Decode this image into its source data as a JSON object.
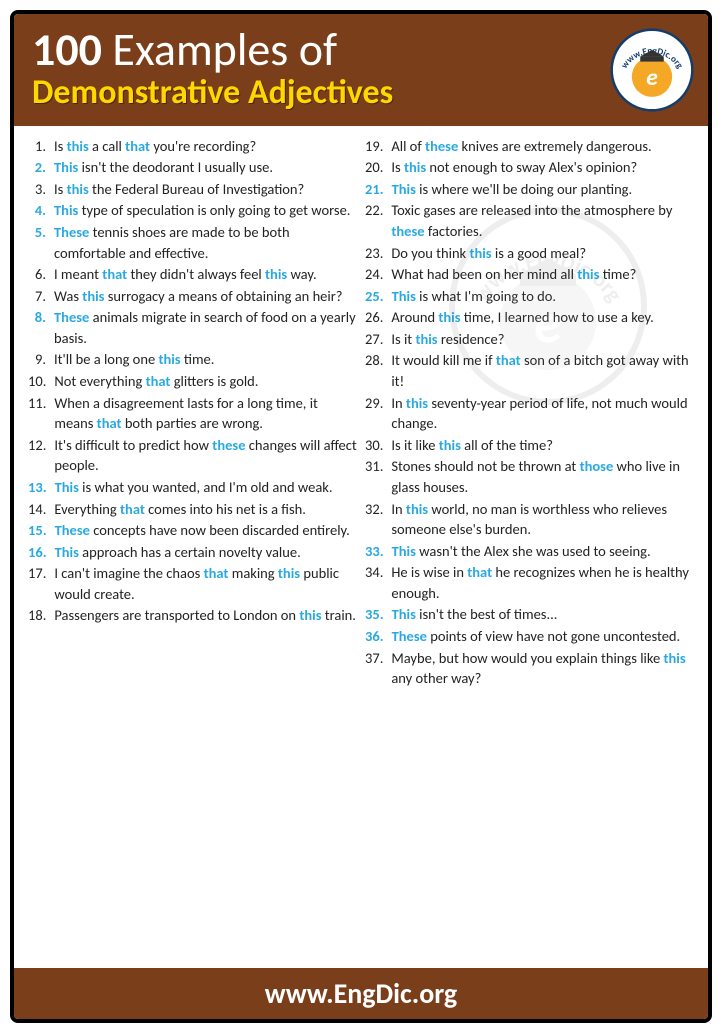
{
  "header": {
    "title_bold": "100",
    "title_rest": " Examples of",
    "subtitle": "Demonstrative Adjectives",
    "bg": "#7a3e1b",
    "title_color": "#ffffff",
    "subtitle_color": "#ffd700"
  },
  "logo": {
    "text_top": "www.EngDic.org",
    "outer_color": "#153d6b",
    "inner_color": "#f5a826",
    "letter": "e"
  },
  "footer": {
    "text": "www.EngDic.org",
    "bg": "#7a3e1b",
    "color": "#ffffff"
  },
  "highlight_color": "#2aa9e0",
  "text_color": "#222222",
  "columns": {
    "left": [
      {
        "n": "1.",
        "hl": false,
        "parts": [
          [
            "Is ",
            0
          ],
          [
            "this ",
            1
          ],
          [
            "a call ",
            0
          ],
          [
            "that ",
            1
          ],
          [
            "you're recording?",
            0
          ]
        ]
      },
      {
        "n": "2.",
        "hl": true,
        "parts": [
          [
            "This ",
            1
          ],
          [
            "isn't the deodorant I usually use.",
            0
          ]
        ]
      },
      {
        "n": "3.",
        "hl": false,
        "parts": [
          [
            "Is ",
            0
          ],
          [
            "this ",
            1
          ],
          [
            "the Federal Bureau of Investigation?",
            0
          ]
        ]
      },
      {
        "n": "4.",
        "hl": true,
        "parts": [
          [
            "This ",
            1
          ],
          [
            "type of speculation is only going to get worse.",
            0
          ]
        ]
      },
      {
        "n": "5.",
        "hl": true,
        "parts": [
          [
            "These ",
            1
          ],
          [
            "tennis shoes are made to be both comfortable and effective.",
            0
          ]
        ]
      },
      {
        "n": "6.",
        "hl": false,
        "parts": [
          [
            "I meant ",
            0
          ],
          [
            "that ",
            1
          ],
          [
            "they didn't always feel ",
            0
          ],
          [
            "this ",
            1
          ],
          [
            "way.",
            0
          ]
        ]
      },
      {
        "n": "7.",
        "hl": false,
        "parts": [
          [
            "Was ",
            0
          ],
          [
            "this ",
            1
          ],
          [
            "surrogacy a means of obtaining an heir?",
            0
          ]
        ]
      },
      {
        "n": "8.",
        "hl": true,
        "parts": [
          [
            "These ",
            1
          ],
          [
            "animals migrate in search of food on a yearly basis.",
            0
          ]
        ]
      },
      {
        "n": "9.",
        "hl": false,
        "parts": [
          [
            "It'll be a long one ",
            0
          ],
          [
            "this ",
            1
          ],
          [
            "time.",
            0
          ]
        ]
      },
      {
        "n": "10.",
        "hl": false,
        "parts": [
          [
            "Not everything ",
            0
          ],
          [
            "that ",
            1
          ],
          [
            "glitters is gold.",
            0
          ]
        ]
      },
      {
        "n": "11.",
        "hl": false,
        "parts": [
          [
            "When a disagreement lasts for a long time, it means ",
            0
          ],
          [
            "that ",
            1
          ],
          [
            "both parties are wrong.",
            0
          ]
        ]
      },
      {
        "n": "12.",
        "hl": false,
        "parts": [
          [
            "It's difficult to predict how ",
            0
          ],
          [
            "these ",
            1
          ],
          [
            "changes will affect people.",
            0
          ]
        ]
      },
      {
        "n": "13.",
        "hl": true,
        "parts": [
          [
            "This ",
            1
          ],
          [
            "is what you wanted, and I'm old and weak.",
            0
          ]
        ]
      },
      {
        "n": "14.",
        "hl": false,
        "parts": [
          [
            "Everything ",
            0
          ],
          [
            "that ",
            1
          ],
          [
            "comes into his net is a fish.",
            0
          ]
        ]
      },
      {
        "n": "15.",
        "hl": true,
        "parts": [
          [
            "These ",
            1
          ],
          [
            "concepts have now been discarded entirely.",
            0
          ]
        ]
      },
      {
        "n": "16.",
        "hl": true,
        "parts": [
          [
            "This ",
            1
          ],
          [
            "approach has a certain novelty value.",
            0
          ]
        ]
      },
      {
        "n": "17.",
        "hl": false,
        "parts": [
          [
            "I can't imagine the chaos ",
            0
          ],
          [
            "that ",
            1
          ],
          [
            "making ",
            0
          ],
          [
            "this ",
            1
          ],
          [
            "public would create.",
            0
          ]
        ]
      },
      {
        "n": "18.",
        "hl": false,
        "parts": [
          [
            "Passengers are transported to London on ",
            0
          ],
          [
            "this ",
            1
          ],
          [
            "train.",
            0
          ]
        ]
      }
    ],
    "right": [
      {
        "n": "19.",
        "hl": false,
        "parts": [
          [
            "All of ",
            0
          ],
          [
            "these ",
            1
          ],
          [
            "knives are extremely dangerous.",
            0
          ]
        ]
      },
      {
        "n": "20.",
        "hl": false,
        "parts": [
          [
            "Is ",
            0
          ],
          [
            "this ",
            1
          ],
          [
            "not enough to sway Alex's opinion?",
            0
          ]
        ]
      },
      {
        "n": "21.",
        "hl": true,
        "parts": [
          [
            "This ",
            1
          ],
          [
            "is where we'll be doing our planting.",
            0
          ]
        ]
      },
      {
        "n": "22.",
        "hl": false,
        "parts": [
          [
            "Toxic gases are released into the atmosphere by ",
            0
          ],
          [
            "these ",
            1
          ],
          [
            "factories.",
            0
          ]
        ]
      },
      {
        "n": "23.",
        "hl": false,
        "parts": [
          [
            "Do you think ",
            0
          ],
          [
            "this ",
            1
          ],
          [
            "is a good meal?",
            0
          ]
        ]
      },
      {
        "n": "24.",
        "hl": false,
        "parts": [
          [
            "What had been on her mind all ",
            0
          ],
          [
            "this ",
            1
          ],
          [
            "time?",
            0
          ]
        ]
      },
      {
        "n": "25.",
        "hl": true,
        "parts": [
          [
            "This ",
            1
          ],
          [
            "is what I'm going to do.",
            0
          ]
        ]
      },
      {
        "n": "26.",
        "hl": false,
        "parts": [
          [
            "Around ",
            0
          ],
          [
            "this ",
            1
          ],
          [
            "time, I learned how to use a key.",
            0
          ]
        ]
      },
      {
        "n": "27.",
        "hl": false,
        "parts": [
          [
            "Is it ",
            0
          ],
          [
            "this ",
            1
          ],
          [
            "residence?",
            0
          ]
        ]
      },
      {
        "n": "28.",
        "hl": false,
        "parts": [
          [
            "It would kill me if ",
            0
          ],
          [
            "that ",
            1
          ],
          [
            "son of a bitch got away with it!",
            0
          ]
        ]
      },
      {
        "n": "29.",
        "hl": false,
        "parts": [
          [
            "In ",
            0
          ],
          [
            "this ",
            1
          ],
          [
            "seventy-year period of life, not much would change.",
            0
          ]
        ]
      },
      {
        "n": "30.",
        "hl": false,
        "parts": [
          [
            "Is it like ",
            0
          ],
          [
            "this ",
            1
          ],
          [
            "all of the time?",
            0
          ]
        ]
      },
      {
        "n": "31.",
        "hl": false,
        "parts": [
          [
            "Stones should not be thrown at ",
            0
          ],
          [
            "those ",
            1
          ],
          [
            "who live in glass houses.",
            0
          ]
        ]
      },
      {
        "n": "32.",
        "hl": false,
        "parts": [
          [
            "In ",
            0
          ],
          [
            "this ",
            1
          ],
          [
            "world, no man is worthless who relieves someone else's burden.",
            0
          ]
        ]
      },
      {
        "n": "33.",
        "hl": true,
        "parts": [
          [
            "This ",
            1
          ],
          [
            "wasn't the Alex she was used to seeing.",
            0
          ]
        ]
      },
      {
        "n": "34.",
        "hl": false,
        "parts": [
          [
            "He is wise in ",
            0
          ],
          [
            "that ",
            1
          ],
          [
            "he recognizes when he is healthy enough.",
            0
          ]
        ]
      },
      {
        "n": "35.",
        "hl": true,
        "parts": [
          [
            "This ",
            1
          ],
          [
            "isn't the best of times...",
            0
          ]
        ]
      },
      {
        "n": "36.",
        "hl": true,
        "parts": [
          [
            "These ",
            1
          ],
          [
            "points of view have not gone uncontested.",
            0
          ]
        ]
      },
      {
        "n": "37.",
        "hl": false,
        "parts": [
          [
            "Maybe, but how would you explain things like ",
            0
          ],
          [
            "this ",
            1
          ],
          [
            "any other way?",
            0
          ]
        ]
      }
    ]
  }
}
